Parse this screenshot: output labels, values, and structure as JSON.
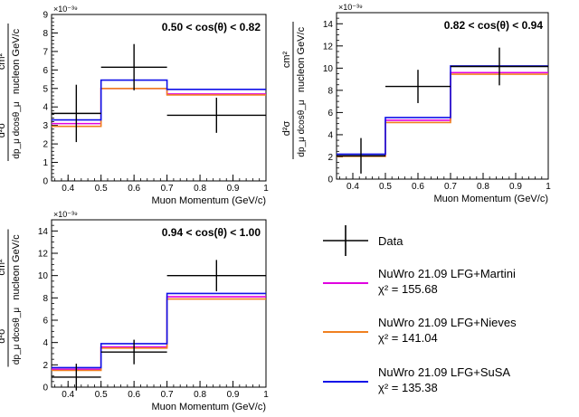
{
  "legend": {
    "data_label": "Data",
    "entries": [
      {
        "line1": "NuWro 21.09 LFG+Martini",
        "line2": "χ² = 155.68",
        "color": "#e000e0"
      },
      {
        "line1": "NuWro 21.09 LFG+Nieves",
        "line2": "χ² = 141.04",
        "color": "#f08020"
      },
      {
        "line1": "NuWro 21.09 LFG+SuSA",
        "line2": "χ² = 135.38",
        "color": "#1010e8"
      }
    ]
  },
  "chart_data": [
    {
      "type": "step",
      "title": "0.50 < cos(θ) < 0.82",
      "xlabel": "Muon Momentum (GeV/c)",
      "ylabel_main": "d²σ / dp_μ dcosθ_μ",
      "ylabel_units": "cm² / nucleon GeV/c",
      "scale_label": "×10⁻³⁹",
      "xlim": [
        0.35,
        1.0
      ],
      "ylim": [
        0,
        9
      ],
      "xticks": [
        0.4,
        0.5,
        0.6,
        0.7,
        0.8,
        0.9,
        1
      ],
      "yticks": [
        0,
        1,
        2,
        3,
        4,
        5,
        6,
        7,
        8,
        9
      ],
      "bin_edges": [
        0.35,
        0.5,
        0.7,
        1.0
      ],
      "series": [
        {
          "name": "Martini",
          "color": "#e000e0",
          "values": [
            3.1,
            5.0,
            4.7
          ]
        },
        {
          "name": "Nieves",
          "color": "#f08020",
          "values": [
            2.95,
            5.0,
            4.65
          ]
        },
        {
          "name": "SuSA",
          "color": "#1010e8",
          "values": [
            3.3,
            5.45,
            4.95
          ]
        }
      ],
      "data_points": [
        {
          "x": 0.425,
          "xerr": 0.075,
          "y": 3.65,
          "yerr": 1.55
        },
        {
          "x": 0.6,
          "xerr": 0.1,
          "y": 6.15,
          "yerr": 1.25
        },
        {
          "x": 0.85,
          "xerr": 0.15,
          "y": 3.55,
          "yerr": 0.95
        }
      ]
    },
    {
      "type": "step",
      "title": "0.82 < cos(θ) < 0.94",
      "xlabel": "Muon Momentum (GeV/c)",
      "ylabel_main": "d²σ / dp_μ dcosθ_μ",
      "ylabel_units": "cm² / nucleon GeV/c",
      "scale_label": "×10⁻³⁹",
      "xlim": [
        0.35,
        1.0
      ],
      "ylim": [
        0,
        15
      ],
      "xticks": [
        0.4,
        0.5,
        0.6,
        0.7,
        0.8,
        0.9,
        1
      ],
      "yticks": [
        0,
        2,
        4,
        6,
        8,
        10,
        12,
        14
      ],
      "bin_edges": [
        0.35,
        0.5,
        0.7,
        1.0
      ],
      "series": [
        {
          "name": "Martini",
          "color": "#e000e0",
          "values": [
            2.1,
            5.3,
            9.6
          ]
        },
        {
          "name": "Nieves",
          "color": "#f08020",
          "values": [
            2.05,
            5.1,
            9.45
          ]
        },
        {
          "name": "SuSA",
          "color": "#1010e8",
          "values": [
            2.25,
            5.55,
            10.2
          ]
        }
      ],
      "data_points": [
        {
          "x": 0.425,
          "xerr": 0.075,
          "y": 2.1,
          "yerr": 1.6
        },
        {
          "x": 0.6,
          "xerr": 0.1,
          "y": 8.35,
          "yerr": 1.5
        },
        {
          "x": 0.85,
          "xerr": 0.15,
          "y": 10.15,
          "yerr": 1.7
        }
      ]
    },
    {
      "type": "step",
      "title": "0.94 < cos(θ) < 1.00",
      "xlabel": "Muon Momentum (GeV/c)",
      "ylabel_main": "d²σ / dp_μ dcosθ_μ",
      "ylabel_units": "cm² / nucleon GeV/c",
      "scale_label": "×10⁻³⁹",
      "xlim": [
        0.35,
        1.0
      ],
      "ylim": [
        0,
        15
      ],
      "xticks": [
        0.4,
        0.5,
        0.6,
        0.7,
        0.8,
        0.9,
        1
      ],
      "yticks": [
        0,
        2,
        4,
        6,
        8,
        10,
        12,
        14
      ],
      "bin_edges": [
        0.35,
        0.5,
        0.7,
        1.0
      ],
      "series": [
        {
          "name": "Martini",
          "color": "#e000e0",
          "values": [
            1.6,
            3.6,
            8.1
          ]
        },
        {
          "name": "Nieves",
          "color": "#f08020",
          "values": [
            1.5,
            3.5,
            7.9
          ]
        },
        {
          "name": "SuSA",
          "color": "#1010e8",
          "values": [
            1.75,
            3.9,
            8.4
          ]
        }
      ],
      "data_points": [
        {
          "x": 0.425,
          "xerr": 0.075,
          "y": 0.9,
          "yerr": 1.2
        },
        {
          "x": 0.6,
          "xerr": 0.1,
          "y": 3.15,
          "yerr": 1.1
        },
        {
          "x": 0.85,
          "xerr": 0.15,
          "y": 10.0,
          "yerr": 1.4
        }
      ]
    }
  ]
}
